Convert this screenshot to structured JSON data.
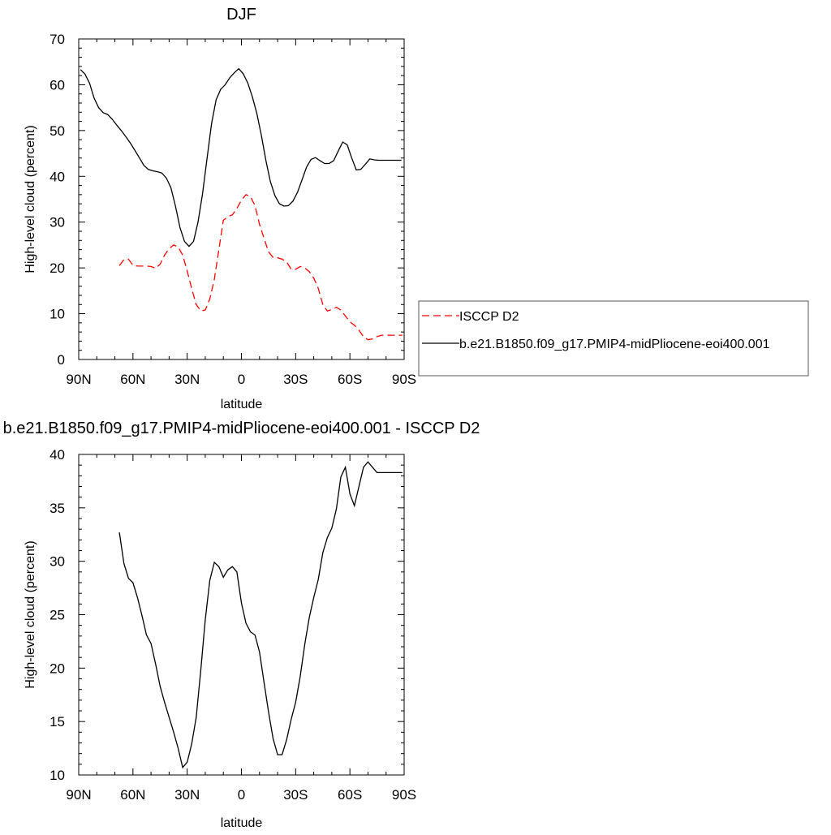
{
  "chart_data": [
    {
      "type": "line",
      "title": "DJF",
      "xlabel": "latitude",
      "ylabel": "High-level cloud (percent)",
      "xlim": [
        90,
        -90
      ],
      "ylim": [
        0,
        70
      ],
      "xticks": [
        {
          "v": 90,
          "label": "90N"
        },
        {
          "v": 60,
          "label": "60N"
        },
        {
          "v": 30,
          "label": "30N"
        },
        {
          "v": 0,
          "label": "0"
        },
        {
          "v": -30,
          "label": "30S"
        },
        {
          "v": -60,
          "label": "60S"
        },
        {
          "v": -90,
          "label": "90S"
        }
      ],
      "yticks": [
        0,
        10,
        20,
        30,
        40,
        50,
        60,
        70
      ],
      "legend": "outside-right",
      "series": [
        {
          "name": "ISCCP D2",
          "color": "#ff0000",
          "dash": "dashed",
          "x": [
            67.5,
            65,
            62.5,
            60,
            57.5,
            55,
            52.5,
            50,
            47.5,
            45,
            42.5,
            40,
            37.5,
            35,
            32.5,
            30,
            27.5,
            25,
            22.5,
            20,
            17.5,
            15,
            12.5,
            10,
            7.5,
            5,
            2.5,
            0,
            -2.5,
            -5,
            -7.5,
            -10,
            -12.5,
            -15,
            -17.5,
            -20,
            -22.5,
            -25,
            -27.5,
            -30,
            -32.5,
            -35,
            -37.5,
            -40,
            -42.5,
            -45,
            -47.5,
            -50,
            -52.5,
            -55,
            -57.5,
            -60,
            -62.5,
            -65,
            -67.5,
            -70,
            -72.5,
            -75,
            -77.5,
            -80,
            -82.5,
            -85,
            -87.5,
            -89
          ],
          "y": [
            20.5,
            21.8,
            21.9,
            20.6,
            20.4,
            20.4,
            20.4,
            20.3,
            19.9,
            20.8,
            22.8,
            24.2,
            25.0,
            24.6,
            22.8,
            19.3,
            15.5,
            12.0,
            10.6,
            10.8,
            13.2,
            17.5,
            24.0,
            30.4,
            31.2,
            31.6,
            33.0,
            34.8,
            36.0,
            35.6,
            33.6,
            29.5,
            26.5,
            23.5,
            22.3,
            22.2,
            21.9,
            21.3,
            19.7,
            19.7,
            20.3,
            20.0,
            19.2,
            17.8,
            15.5,
            12.0,
            10.6,
            10.9,
            11.4,
            10.8,
            9.5,
            8.2,
            7.5,
            6.4,
            5.0,
            4.3,
            4.5,
            5.0,
            5.3,
            5.3,
            5.3,
            5.3,
            5.3,
            5.3
          ]
        },
        {
          "name": "b.e21.B1850.f09_g17.PMIP4-midPliocene-eoi400.001",
          "color": "#000000",
          "dash": "solid",
          "x": [
            89,
            86.5,
            84,
            81.5,
            79,
            76.5,
            74,
            71.5,
            69,
            66.5,
            64,
            61.5,
            59,
            56.5,
            54,
            51.5,
            49,
            46.5,
            44,
            41.5,
            39,
            36.5,
            34,
            31.5,
            29,
            26.5,
            24,
            21.5,
            19,
            16.5,
            14,
            11.5,
            9,
            6.5,
            4,
            1.5,
            -1,
            -3.5,
            -6,
            -8.5,
            -11,
            -13.5,
            -16,
            -18.5,
            -21,
            -23.5,
            -26,
            -28.5,
            -31,
            -33.5,
            -36,
            -38.5,
            -41,
            -43.5,
            -46,
            -48.5,
            -51,
            -53.5,
            -56,
            -58.5,
            -61,
            -63.5,
            -66,
            -68.5,
            -71,
            -73.5,
            -76,
            -78.5,
            -81,
            -83.5,
            -86,
            -88.5
          ],
          "y": [
            63.3,
            62.3,
            60.3,
            57.1,
            55.0,
            53.9,
            53.5,
            52.5,
            51.2,
            50.0,
            48.7,
            47.3,
            45.7,
            44.1,
            42.4,
            41.5,
            41.2,
            41.0,
            40.7,
            39.6,
            37.5,
            33.5,
            28.8,
            25.8,
            24.7,
            25.8,
            30.0,
            36.2,
            44.0,
            51.5,
            56.7,
            59.0,
            60.0,
            61.5,
            62.6,
            63.5,
            62.4,
            60.4,
            57.4,
            53.8,
            49.0,
            43.5,
            38.9,
            35.8,
            34.0,
            33.5,
            33.6,
            34.6,
            36.5,
            39.2,
            42.0,
            43.7,
            44.1,
            43.4,
            42.8,
            42.8,
            43.4,
            45.5,
            47.5,
            46.9,
            44.0,
            41.4,
            41.5,
            42.6,
            43.8,
            43.6,
            43.5,
            43.5,
            43.5,
            43.5,
            43.5,
            43.5
          ]
        }
      ]
    },
    {
      "type": "line",
      "title": "b.e21.B1850.f09_g17.PMIP4-midPliocene-eoi400.001 - ISCCP D2",
      "xlabel": "latitude",
      "ylabel": "High-level cloud (percent)",
      "xlim": [
        90,
        -90
      ],
      "ylim": [
        10,
        40
      ],
      "xticks": [
        {
          "v": 90,
          "label": "90N"
        },
        {
          "v": 60,
          "label": "60N"
        },
        {
          "v": 30,
          "label": "30N"
        },
        {
          "v": 0,
          "label": "0"
        },
        {
          "v": -30,
          "label": "30S"
        },
        {
          "v": -60,
          "label": "60S"
        },
        {
          "v": -90,
          "label": "90S"
        }
      ],
      "yticks": [
        10,
        15,
        20,
        25,
        30,
        35,
        40
      ],
      "series": [
        {
          "color": "#000000",
          "dash": "solid",
          "x": [
            67.5,
            65,
            62.5,
            60,
            57.5,
            55,
            52.5,
            50,
            47.5,
            45,
            42.5,
            40,
            37.5,
            35,
            32.5,
            30,
            27.5,
            25,
            22.5,
            20,
            17.5,
            15,
            12.5,
            10,
            7.5,
            5,
            2.5,
            0,
            -2.5,
            -5,
            -7.5,
            -10,
            -12.5,
            -15,
            -17.5,
            -20,
            -22.5,
            -25,
            -27.5,
            -30,
            -32.5,
            -35,
            -37.5,
            -40,
            -42.5,
            -45,
            -47.5,
            -50,
            -52.5,
            -55,
            -57.5,
            -60,
            -62.5,
            -65,
            -67.5,
            -70,
            -72.5,
            -75,
            -77.5,
            -80,
            -82.5,
            -85,
            -87.5,
            -89
          ],
          "y": [
            32.7,
            29.8,
            28.4,
            28.0,
            26.6,
            24.9,
            23.1,
            22.3,
            20.4,
            18.3,
            16.8,
            15.4,
            14.0,
            12.5,
            10.7,
            11.2,
            12.9,
            15.4,
            19.8,
            24.5,
            28.2,
            29.9,
            29.5,
            28.5,
            29.2,
            29.5,
            29.0,
            26.1,
            24.2,
            23.4,
            23.1,
            21.5,
            18.7,
            15.9,
            13.4,
            11.9,
            11.9,
            13.3,
            15.2,
            16.8,
            19.2,
            22.2,
            24.7,
            26.6,
            28.3,
            30.8,
            32.2,
            33.1,
            34.9,
            37.9,
            38.8,
            36.3,
            35.2,
            37.0,
            38.8,
            39.3,
            38.8,
            38.3,
            38.3,
            38.3,
            38.3,
            38.3,
            38.3,
            38.3
          ]
        }
      ]
    }
  ]
}
